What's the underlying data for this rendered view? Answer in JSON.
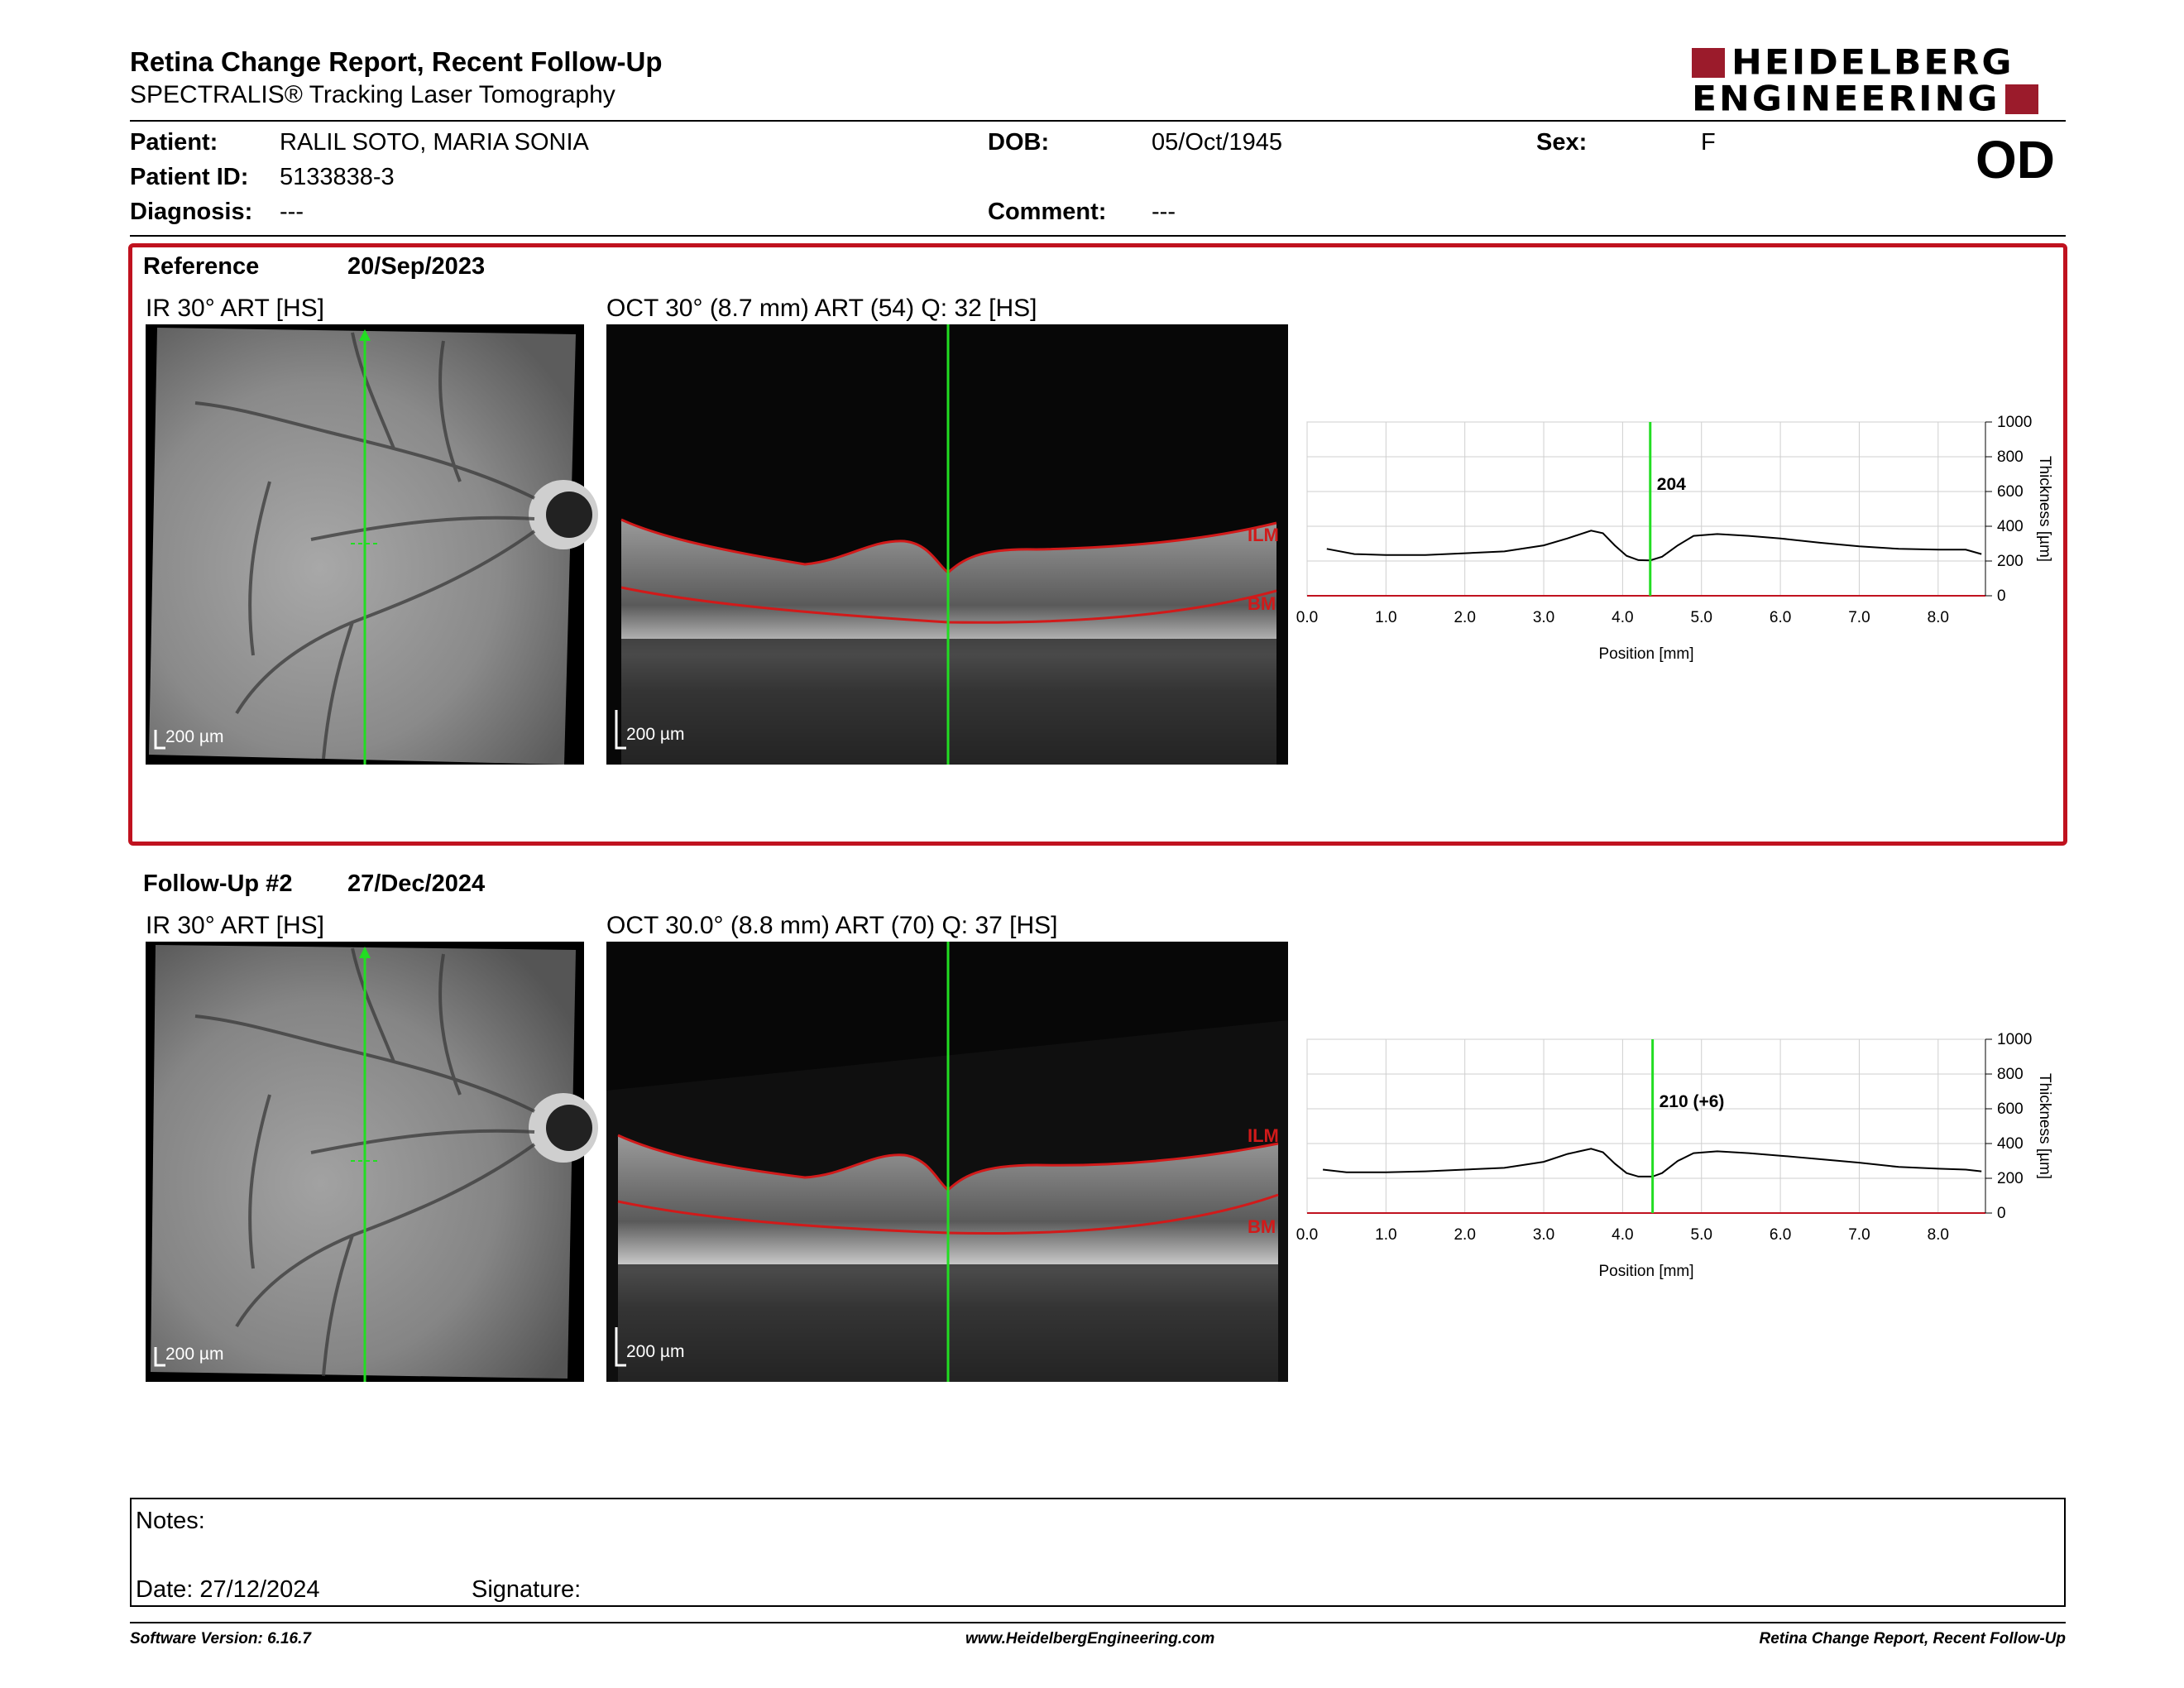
{
  "header": {
    "title": "Retina Change Report, Recent Follow-Up",
    "subtitle": "SPECTRALIS® Tracking Laser Tomography",
    "logo_line1": "HEIDELBERG",
    "logo_line2": "ENGINEERING",
    "brand_color": "#9b1b2b"
  },
  "patient": {
    "patient_label": "Patient:",
    "patient_value": "RALIL SOTO, MARIA SONIA",
    "id_label": "Patient ID:",
    "id_value": "5133838-3",
    "diagnosis_label": "Diagnosis:",
    "diagnosis_value": "---",
    "dob_label": "DOB:",
    "dob_value": "05/Oct/1945",
    "comment_label": "Comment:",
    "comment_value": "---",
    "sex_label": "Sex:",
    "sex_value": "F",
    "eye": "OD"
  },
  "reference": {
    "label": "Reference",
    "date": "20/Sep/2023",
    "ir_caption": "IR 30° ART [HS]",
    "oct_caption": "OCT 30° (8.7 mm) ART (54) Q: 32 [HS]",
    "scale": "200 µm",
    "ilm": "ILM",
    "bm": "BM",
    "highlight_color": "#c0121f"
  },
  "followup": {
    "label": "Follow-Up #2",
    "date": "27/Dec/2024",
    "ir_caption": "IR 30° ART [HS]",
    "oct_caption": "OCT 30.0° (8.8 mm) ART (70) Q: 37 [HS]",
    "scale": "200 µm",
    "ilm": "ILM",
    "bm": "BM"
  },
  "chart_data": [
    {
      "type": "line",
      "xlabel": "Position [mm]",
      "ylabel": "Thickness [µm]",
      "xlim": [
        0.0,
        8.6
      ],
      "ylim": [
        0,
        1000
      ],
      "x_ticks": [
        "0.0",
        "1.0",
        "2.0",
        "3.0",
        "4.0",
        "5.0",
        "6.0",
        "7.0",
        "8.0"
      ],
      "y_ticks": [
        "0",
        "200",
        "400",
        "600",
        "800",
        "1000"
      ],
      "grid": true,
      "marker_x": 4.35,
      "marker_label": "204",
      "marker_color": "#22dd22",
      "series": [
        {
          "x": [
            0.25,
            0.6,
            1.0,
            1.5,
            2.0,
            2.5,
            3.0,
            3.3,
            3.6,
            3.75,
            3.9,
            4.05,
            4.2,
            4.35,
            4.5,
            4.7,
            4.9,
            5.2,
            5.6,
            6.0,
            6.5,
            7.0,
            7.5,
            8.0,
            8.35,
            8.55
          ],
          "values": [
            270,
            240,
            235,
            235,
            245,
            255,
            290,
            330,
            375,
            360,
            290,
            230,
            205,
            204,
            225,
            290,
            345,
            355,
            345,
            330,
            305,
            285,
            270,
            265,
            265,
            240
          ]
        }
      ]
    },
    {
      "type": "line",
      "xlabel": "Position [mm]",
      "ylabel": "Thickness [µm]",
      "xlim": [
        0.0,
        8.6
      ],
      "ylim": [
        0,
        1000
      ],
      "x_ticks": [
        "0.0",
        "1.0",
        "2.0",
        "3.0",
        "4.0",
        "5.0",
        "6.0",
        "7.0",
        "8.0"
      ],
      "y_ticks": [
        "0",
        "200",
        "400",
        "600",
        "800",
        "1000"
      ],
      "grid": true,
      "marker_x": 4.38,
      "marker_label": "210 (+6)",
      "marker_color": "#22dd22",
      "series": [
        {
          "x": [
            0.2,
            0.5,
            1.0,
            1.5,
            2.0,
            2.5,
            3.0,
            3.3,
            3.6,
            3.75,
            3.9,
            4.05,
            4.2,
            4.38,
            4.5,
            4.7,
            4.9,
            5.2,
            5.6,
            6.0,
            6.5,
            7.0,
            7.5,
            8.0,
            8.35,
            8.55
          ],
          "values": [
            250,
            235,
            235,
            240,
            250,
            260,
            295,
            340,
            370,
            350,
            285,
            230,
            210,
            210,
            230,
            300,
            345,
            355,
            345,
            330,
            310,
            290,
            265,
            255,
            250,
            240
          ]
        }
      ]
    }
  ],
  "notes": {
    "notes_label": "Notes:",
    "date_label": "Date: 27/12/2024",
    "signature_label": "Signature:"
  },
  "footer": {
    "software": "Software Version: 6.16.7",
    "website": "www.HeidelbergEngineering.com",
    "report": "Retina Change Report, Recent Follow-Up"
  }
}
